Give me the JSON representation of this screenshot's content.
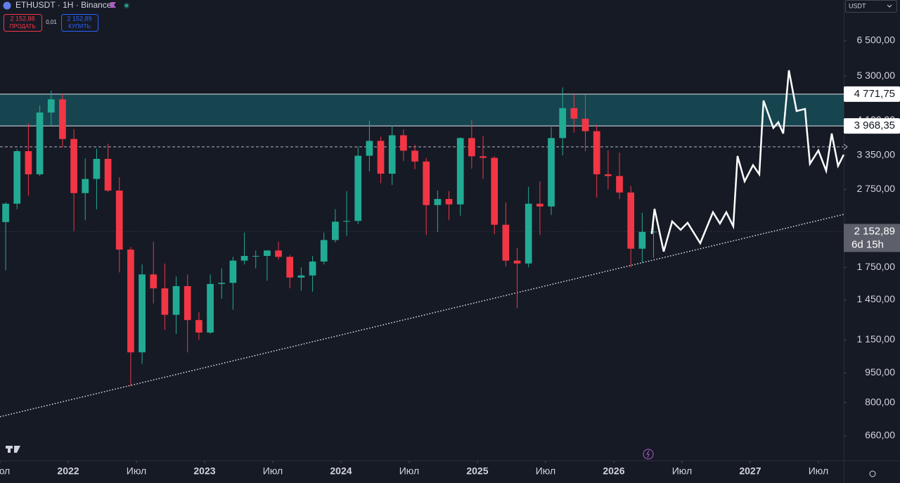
{
  "header": {
    "symbol": "ETHUSDT · 1H · Binance",
    "sell_price": "2 152,88",
    "sell_label": "ПРОДАТЬ",
    "spread": "0,01",
    "buy_price": "2 152,89",
    "buy_label": "КУПИТЬ",
    "currency": "USDT"
  },
  "chart_data": {
    "type": "candlestick",
    "log_scale": true,
    "up_color": "#22ab94",
    "down_color": "#f23645",
    "x": [
      "2021-07",
      "2021-08",
      "2021-09",
      "2021-10",
      "2021-11",
      "2021-12",
      "2022-01",
      "2022-02",
      "2022-03",
      "2022-04",
      "2022-05",
      "2022-06",
      "2022-07",
      "2022-08",
      "2022-09",
      "2022-10",
      "2022-11",
      "2022-12",
      "2023-01",
      "2023-02",
      "2023-03",
      "2023-04",
      "2023-05",
      "2023-06",
      "2023-07",
      "2023-08",
      "2023-09",
      "2023-10",
      "2023-11",
      "2023-12",
      "2024-01",
      "2024-02",
      "2024-03",
      "2024-04",
      "2024-05",
      "2024-06",
      "2024-07",
      "2024-08",
      "2024-09",
      "2024-10",
      "2024-11",
      "2024-12",
      "2025-01",
      "2025-02",
      "2025-03",
      "2025-04",
      "2025-05",
      "2025-06",
      "2025-07",
      "2025-08",
      "2025-09",
      "2025-10",
      "2025-11",
      "2025-12",
      "2026-01",
      "2026-02",
      "2026-03",
      "2026-04"
    ],
    "open": [
      2275,
      2530,
      3430,
      3000,
      4290,
      4630,
      3680,
      2690,
      2920,
      3280,
      2730,
      1940,
      1070,
      1680,
      1550,
      1330,
      1570,
      1290,
      1200,
      1590,
      1600,
      1820,
      1870,
      1870,
      1930,
      1860,
      1650,
      1670,
      1810,
      2050,
      2280,
      2290,
      3340,
      3640,
      3010,
      3760,
      3440,
      3230,
      2510,
      2600,
      2520,
      3700,
      3330,
      3300,
      2240,
      1820,
      1790,
      2530,
      2490,
      3700,
      4400,
      4140,
      3850,
      3000,
      2970,
      2700,
      1950,
      2150
    ],
    "high": [
      2550,
      3470,
      4030,
      4460,
      4870,
      4780,
      3900,
      3290,
      3480,
      3580,
      2950,
      1970,
      1780,
      2030,
      1790,
      1660,
      1680,
      1350,
      1680,
      1740,
      1860,
      2140,
      1930,
      1930,
      2030,
      1880,
      1750,
      1870,
      2140,
      2450,
      2720,
      3520,
      4090,
      3730,
      3980,
      3890,
      3560,
      3300,
      2730,
      2720,
      3720,
      4110,
      3740,
      3330,
      2550,
      1960,
      2790,
      2880,
      3940,
      4960,
      4770,
      4760,
      4000,
      3450,
      3400,
      2800,
      2400,
      2250
    ],
    "low": [
      1720,
      2450,
      2650,
      2970,
      3970,
      3500,
      2160,
      2300,
      2450,
      2710,
      1700,
      880,
      1000,
      1420,
      1220,
      1190,
      1070,
      1150,
      1190,
      1460,
      1370,
      1780,
      1740,
      1620,
      1830,
      1550,
      1530,
      1520,
      1780,
      2020,
      2100,
      2250,
      3050,
      2850,
      2820,
      3240,
      3090,
      2110,
      2150,
      2300,
      2360,
      3100,
      2920,
      2120,
      1760,
      1380,
      1750,
      2110,
      2370,
      3350,
      3820,
      3430,
      2620,
      2750,
      2600,
      1750,
      1800,
      1850
    ],
    "close": [
      2530,
      3430,
      3000,
      4290,
      4630,
      3680,
      2690,
      2920,
      3280,
      2730,
      1940,
      1070,
      1680,
      1550,
      1330,
      1570,
      1290,
      1200,
      1590,
      1600,
      1820,
      1870,
      1870,
      1930,
      1860,
      1650,
      1670,
      1810,
      2050,
      2280,
      2290,
      3340,
      3640,
      3010,
      3760,
      3440,
      3230,
      2510,
      2600,
      2520,
      3700,
      3330,
      3300,
      2240,
      1820,
      1790,
      2530,
      2490,
      3700,
      4400,
      4140,
      3850,
      3000,
      2970,
      2700,
      1950,
      2150,
      2152.89
    ],
    "xlim": [
      2021.5,
      2027.686
    ],
    "xticks": [
      {
        "value": 2021.5,
        "label": "Июл"
      },
      {
        "value": 2022,
        "label": "2022"
      },
      {
        "value": 2022.5,
        "label": "Июл"
      },
      {
        "value": 2023,
        "label": "2023"
      },
      {
        "value": 2023.5,
        "label": "Июл"
      },
      {
        "value": 2024,
        "label": "2024"
      },
      {
        "value": 2024.5,
        "label": "Июл"
      },
      {
        "value": 2025,
        "label": "2025"
      },
      {
        "value": 2025.5,
        "label": "Июл"
      },
      {
        "value": 2026,
        "label": "2026"
      },
      {
        "value": 2026.5,
        "label": "Июл"
      },
      {
        "value": 2027,
        "label": "2027"
      },
      {
        "value": 2027.5,
        "label": "Июл"
      }
    ],
    "ylim": [
      572,
      8230
    ],
    "yticks": [
      {
        "value": 660,
        "label": "660,00"
      },
      {
        "value": 800,
        "label": "800,00"
      },
      {
        "value": 950,
        "label": "950,00"
      },
      {
        "value": 1150,
        "label": "1 150,00"
      },
      {
        "value": 1450,
        "label": "1 450,00"
      },
      {
        "value": 1750,
        "label": "1 750,00"
      },
      {
        "value": 2750,
        "label": "2 750,00"
      },
      {
        "value": 3350,
        "label": "3 350,00"
      },
      {
        "value": 4100,
        "label": "4 100,00"
      },
      {
        "value": 5300,
        "label": "5 300,00"
      },
      {
        "value": 6500,
        "label": "6 500,00"
      }
    ],
    "zone": {
      "low": 3968.35,
      "high": 4771.75,
      "low_label": "3 968,35",
      "high_label": "4 771,75",
      "color": "#17454f"
    },
    "level": 3516,
    "last_price": 2152.89,
    "last_price_label": "2 152,89",
    "countdown": "6d 15h",
    "trendline": {
      "x": [
        2021.5,
        2027.686
      ],
      "values": [
        737,
        2379
      ]
    },
    "forecast": {
      "color": "#ffffff",
      "x": [
        2026.278,
        2026.299,
        2026.366,
        2026.428,
        2026.49,
        2026.541,
        2026.634,
        2026.727,
        2026.778,
        2026.825,
        2026.876,
        2026.907,
        2026.959,
        2027.021,
        2027.067,
        2027.098,
        2027.17,
        2027.206,
        2027.242,
        2027.284,
        2027.34,
        2027.402,
        2027.438,
        2027.5,
        2027.557,
        2027.598,
        2027.644,
        2027.686
      ],
      "values": [
        2123,
        2457,
        1918,
        2284,
        2175,
        2265,
        2013,
        2408,
        2256,
        2408,
        2220,
        3335,
        2880,
        3163,
        3000,
        4599,
        3924,
        4054,
        3799,
        5478,
        4326,
        4380,
        3188,
        3444,
        3062,
        3799,
        3150,
        3362
      ]
    }
  }
}
